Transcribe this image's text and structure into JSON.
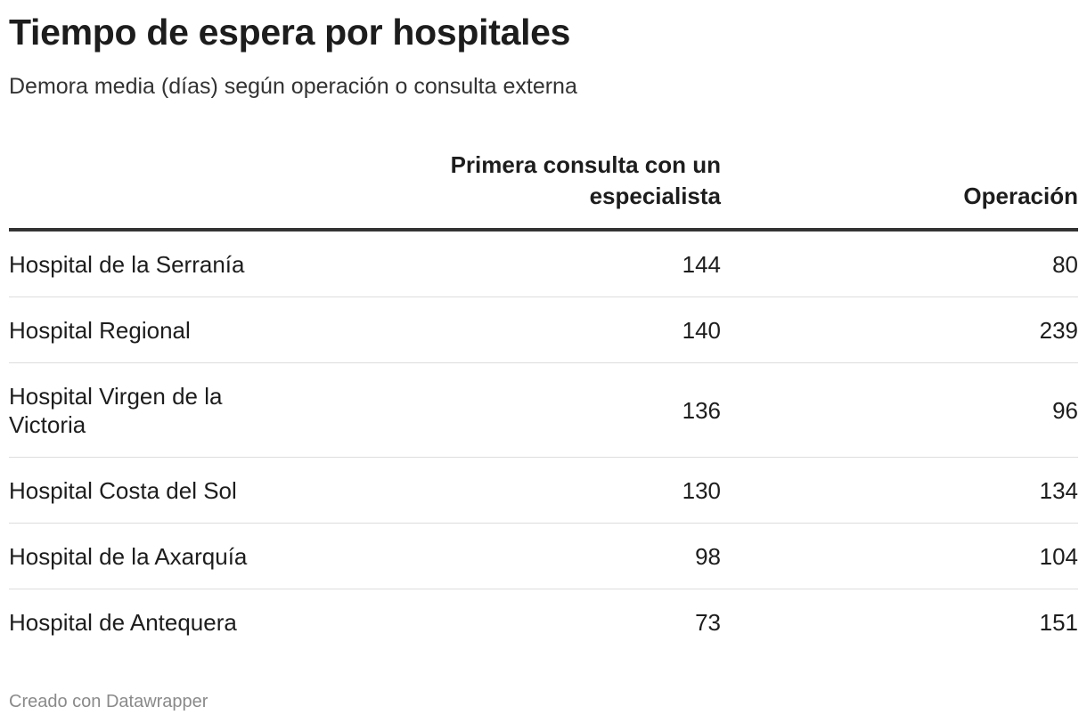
{
  "header": {
    "title": "Tiempo de espera por hospitales",
    "subtitle": "Demora media (días) según operación o consulta externa"
  },
  "chart_data": {
    "type": "table",
    "title": "Tiempo de espera por hospitales",
    "subtitle": "Demora media (días) según operación o consulta externa",
    "columns": [
      "",
      "Primera consulta con un especialista",
      "Operación"
    ],
    "rows": [
      {
        "hospital": "Hospital de la Serranía",
        "primera_consulta": 144,
        "operacion": 80
      },
      {
        "hospital": "Hospital Regional",
        "primera_consulta": 140,
        "operacion": 239
      },
      {
        "hospital": "Hospital Virgen de la Victoria",
        "primera_consulta": 136,
        "operacion": 96
      },
      {
        "hospital": "Hospital Costa del Sol",
        "primera_consulta": 130,
        "operacion": 134
      },
      {
        "hospital": "Hospital de la Axarquía",
        "primera_consulta": 98,
        "operacion": 104
      },
      {
        "hospital": "Hospital de Antequera",
        "primera_consulta": 73,
        "operacion": 151
      }
    ]
  },
  "table_header": {
    "first_consult_line1": "Primera consulta con un",
    "first_consult_line2": "especialista",
    "operation": "Operación"
  },
  "footer": {
    "credit": "Creado con Datawrapper"
  }
}
